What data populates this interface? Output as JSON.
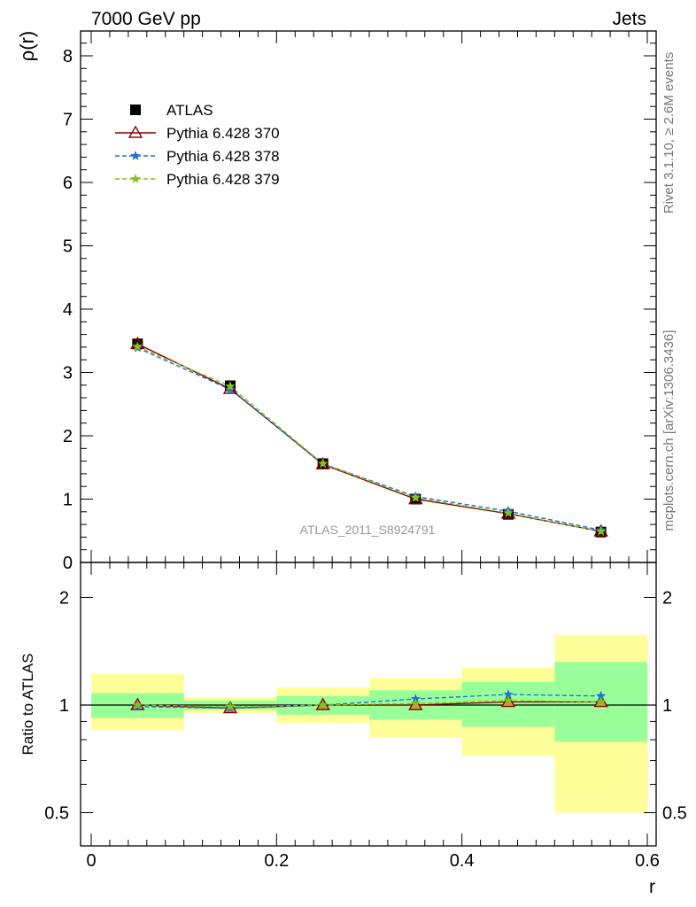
{
  "header": {
    "left": "7000 GeV pp",
    "right": "Jets"
  },
  "side_labels": {
    "rivet": "Rivet 3.1.10, ≥ 2.6M events",
    "mcplots": "mcplots.cern.ch [arXiv:1306.3436]"
  },
  "colors": {
    "atlas": "#000000",
    "p370": "#8b0000",
    "p378": "#1f6fd6",
    "p379": "#80c41c",
    "band_outer": "#ffff99",
    "band_inner": "#99ff99"
  },
  "chart_data": [
    {
      "type": "line",
      "panel": "main",
      "ylabel": "ρ(r)",
      "watermark": "ATLAS_2011_S8924791",
      "xlim": [
        0,
        0.6
      ],
      "ylim": [
        0,
        8.5
      ],
      "yticks": [
        0,
        1,
        2,
        3,
        4,
        5,
        6,
        7,
        8
      ],
      "x": [
        0.05,
        0.15,
        0.25,
        0.35,
        0.45,
        0.55
      ],
      "series": [
        {
          "name": "ATLAS",
          "marker": "square",
          "values": [
            3.45,
            2.79,
            1.56,
            1.0,
            0.76,
            0.48
          ]
        },
        {
          "name": "Pythia 6.428 370",
          "marker": "triangle",
          "values": [
            3.45,
            2.74,
            1.55,
            1.0,
            0.77,
            0.49
          ]
        },
        {
          "name": "Pythia 6.428 378",
          "marker": "star",
          "values": [
            3.39,
            2.73,
            1.56,
            1.04,
            0.81,
            0.51
          ]
        },
        {
          "name": "Pythia 6.428 379",
          "marker": "star",
          "values": [
            3.41,
            2.78,
            1.56,
            1.02,
            0.78,
            0.49
          ]
        }
      ]
    },
    {
      "type": "line",
      "panel": "ratio",
      "ylabel": "Ratio to ATLAS",
      "xlabel": "r",
      "xlim": [
        0,
        0.6
      ],
      "ylim": [
        0.35,
        2.3
      ],
      "yticks": [
        0.5,
        1,
        2
      ],
      "xticks": [
        0,
        0.2,
        0.4,
        0.6
      ],
      "bins": [
        [
          0,
          0.1
        ],
        [
          0.1,
          0.2
        ],
        [
          0.2,
          0.3
        ],
        [
          0.3,
          0.4
        ],
        [
          0.4,
          0.5
        ],
        [
          0.5,
          0.6
        ]
      ],
      "band_outer": [
        [
          0.85,
          1.22
        ],
        [
          0.95,
          1.05
        ],
        [
          0.89,
          1.12
        ],
        [
          0.81,
          1.19
        ],
        [
          0.72,
          1.27
        ],
        [
          0.5,
          1.57
        ]
      ],
      "band_inner": [
        [
          0.92,
          1.08
        ],
        [
          0.97,
          1.03
        ],
        [
          0.94,
          1.06
        ],
        [
          0.91,
          1.1
        ],
        [
          0.87,
          1.16
        ],
        [
          0.79,
          1.32
        ]
      ],
      "x": [
        0.05,
        0.15,
        0.25,
        0.35,
        0.45,
        0.55
      ],
      "series": [
        {
          "name": "Pythia 6.428 370",
          "values": [
            1.0,
            0.98,
            1.0,
            1.0,
            1.02,
            1.02
          ]
        },
        {
          "name": "Pythia 6.428 378",
          "values": [
            0.99,
            0.98,
            1.0,
            1.04,
            1.07,
            1.06
          ]
        },
        {
          "name": "Pythia 6.428 379",
          "values": [
            1.0,
            0.99,
            1.0,
            1.01,
            1.03,
            1.02
          ]
        }
      ]
    }
  ]
}
